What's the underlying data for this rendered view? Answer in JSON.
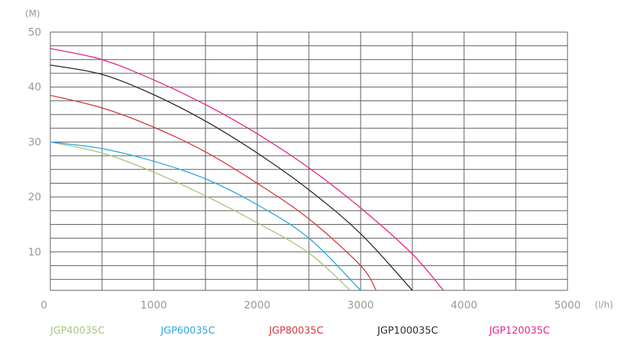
{
  "chart_data": {
    "type": "line",
    "x_unit": "(l/h)",
    "y_unit": "(M)",
    "xlim": [
      0,
      5000
    ],
    "ylim": [
      3,
      50
    ],
    "x_ticks": [
      0,
      1000,
      2000,
      3000,
      4000,
      5000
    ],
    "y_ticks": [
      10,
      20,
      30,
      40,
      50
    ],
    "x_tick_labels": [
      "0",
      "1000",
      "2000",
      "3000",
      "4000",
      "5000"
    ],
    "y_tick_labels": [
      "10",
      "20",
      "30",
      "40",
      "50"
    ],
    "grid": true,
    "legend_position": "bottom",
    "series": [
      {
        "name": "JGP40035C",
        "color": "#a8c47f",
        "x": [
          0,
          500,
          1000,
          1500,
          2000,
          2500,
          2900
        ],
        "y": [
          30,
          28,
          24.5,
          20.2,
          15.3,
          9.8,
          3
        ]
      },
      {
        "name": "JGP60035C",
        "color": "#2aa8df",
        "x": [
          0,
          500,
          1000,
          1500,
          2000,
          2500,
          3000
        ],
        "y": [
          30,
          28.8,
          26.5,
          23.3,
          18.6,
          12.5,
          3
        ]
      },
      {
        "name": "JGP80035C",
        "color": "#d6373c",
        "x": [
          0,
          500,
          1000,
          1500,
          2000,
          2500,
          3000,
          3150
        ],
        "y": [
          38.5,
          36.2,
          32.7,
          28.2,
          22.5,
          16,
          7.5,
          3
        ]
      },
      {
        "name": "JGP100035C",
        "color": "#2b2b2b",
        "x": [
          0,
          500,
          1000,
          1500,
          2000,
          2500,
          3000,
          3500
        ],
        "y": [
          44,
          42.3,
          38.6,
          33.8,
          28,
          21.3,
          13.3,
          3
        ]
      },
      {
        "name": "JGP120035C",
        "color": "#e3258a",
        "x": [
          0,
          500,
          1000,
          1500,
          2000,
          2500,
          3000,
          3500,
          3800
        ],
        "y": [
          47,
          45,
          41.3,
          36.8,
          31.5,
          25.3,
          18,
          9.6,
          3
        ]
      }
    ]
  }
}
